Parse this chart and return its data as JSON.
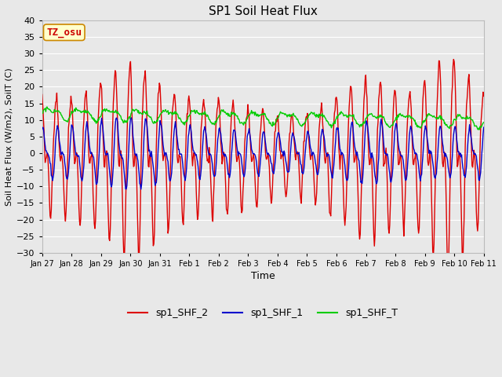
{
  "title": "SP1 Soil Heat Flux",
  "xlabel": "Time",
  "ylabel": "Soil Heat Flux (W/m2), SoilT (C)",
  "ylim": [
    -30,
    40
  ],
  "yticks": [
    -30,
    -25,
    -20,
    -15,
    -10,
    -5,
    0,
    5,
    10,
    15,
    20,
    25,
    30,
    35,
    40
  ],
  "x_labels": [
    "Jan 27",
    "Jan 28",
    "Jan 29",
    "Jan 30",
    "Jan 31",
    "Feb 1",
    "Feb 2",
    "Feb 3",
    "Feb 4",
    "Feb 5",
    "Feb 6",
    "Feb 7",
    "Feb 8",
    "Feb 9",
    "Feb 10",
    "Feb 11"
  ],
  "line_colors": {
    "sp1_SHF_2": "#dd0000",
    "sp1_SHF_1": "#0000cc",
    "sp1_SHF_T": "#00cc00"
  },
  "line_widths": {
    "sp1_SHF_2": 1.0,
    "sp1_SHF_1": 1.0,
    "sp1_SHF_T": 1.0
  },
  "annotation_text": "TZ_osu",
  "annotation_bg": "#ffffcc",
  "annotation_border": "#cc8800",
  "plot_bg": "#e8e8e8",
  "fig_bg": "#e8e8e8",
  "grid_color": "#ffffff",
  "n_points": 720
}
